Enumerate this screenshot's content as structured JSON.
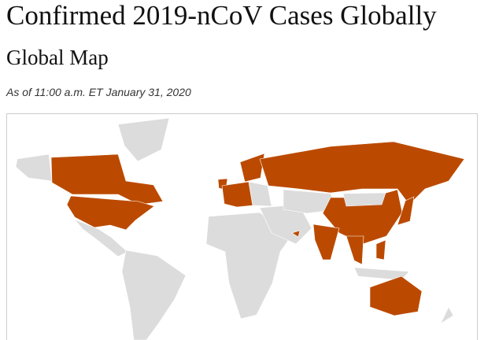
{
  "header": {
    "title": "Confirmed 2019-nCoV Cases Globally",
    "subtitle": "Global Map",
    "date": "As of 11:00 a.m. ET January 31, 2020"
  }
}
